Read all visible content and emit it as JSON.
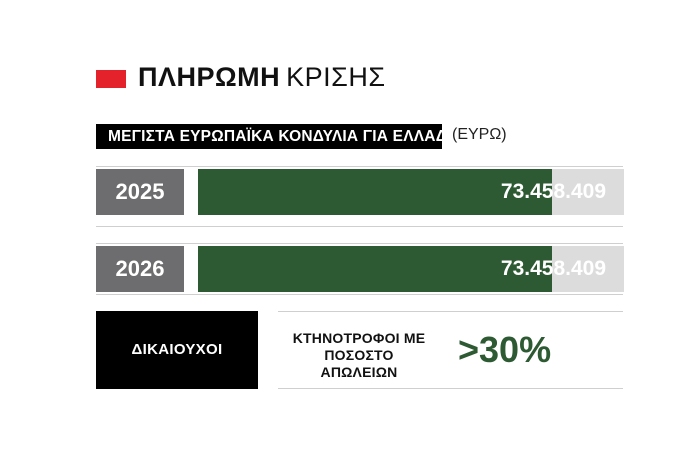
{
  "title": {
    "bold": "ΠΛΗΡΩΜΗ",
    "light": "ΚΡΙΣΗΣ",
    "square_color": "#e4222b"
  },
  "chart_data": {
    "type": "bar",
    "title": "ΜΕΓΙΣΤΑ ΕΥΡΩΠΑΪΚΑ ΚΟΝΔΥΛΙΑ ΓΙΑ ΕΛΛΑΔΑ",
    "unit": "(ΕΥΡΩ)",
    "categories": [
      "2025",
      "2026"
    ],
    "values": [
      73458409,
      73458409
    ],
    "value_labels": [
      "73.458.409",
      "73.458.409"
    ],
    "fill_fraction": [
      0.83,
      0.83
    ],
    "orientation": "horizontal",
    "bar_color": "#2d5a33",
    "track_color": "#dcdcdd",
    "category_box_color": "#6d6d6f"
  },
  "beneficiaries": {
    "label": "ΔΙΚΑΙΟΥΧΟΙ",
    "description_line1": "ΚΤΗΝΟΤΡΟΦΟΙ ΜΕ",
    "description_line2": "ΠΟΣΟΣΤΟ ΑΠΩΛΕΙΩΝ",
    "percentage": ">30%",
    "percentage_color": "#2d5a33"
  }
}
